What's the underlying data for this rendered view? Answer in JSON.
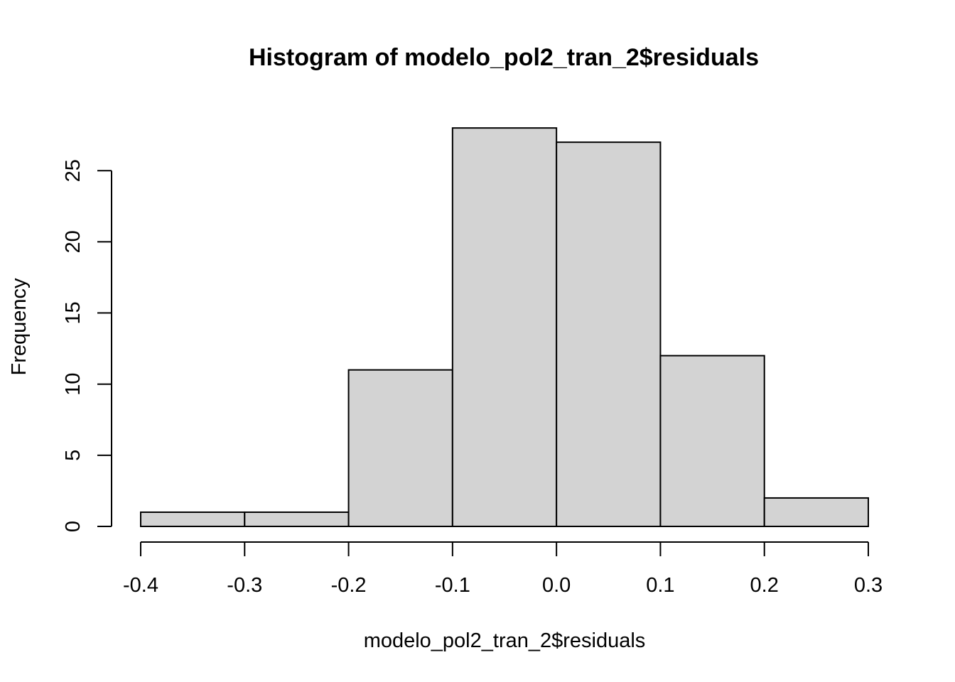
{
  "chart_data": {
    "type": "bar",
    "subtype": "histogram",
    "title": "Histogram of modelo_pol2_tran_2$residuals",
    "xlabel": "modelo_pol2_tran_2$residuals",
    "ylabel": "Frequency",
    "bin_edges": [
      -0.4,
      -0.3,
      -0.2,
      -0.1,
      0.0,
      0.1,
      0.2,
      0.3
    ],
    "values": [
      1,
      1,
      11,
      28,
      27,
      12,
      2
    ],
    "xlim": [
      -0.4,
      0.3
    ],
    "ylim": [
      0,
      28
    ],
    "x_ticks": [
      "-0.4",
      "-0.3",
      "-0.2",
      "-0.1",
      "0.0",
      "0.1",
      "0.2",
      "0.3"
    ],
    "y_ticks": [
      "0",
      "5",
      "10",
      "15",
      "20",
      "25"
    ],
    "grid": false,
    "legend": "none",
    "bar_fill": "#d3d3d3",
    "bar_stroke": "#000000"
  }
}
